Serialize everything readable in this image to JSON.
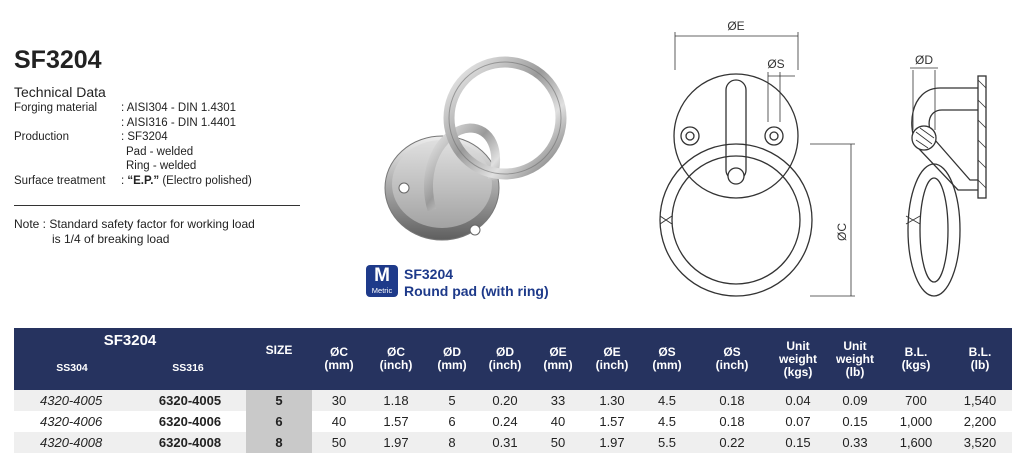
{
  "title": "SF3204",
  "technical_heading": "Technical Data",
  "specs": [
    {
      "label": "Forging material",
      "value": ": AISI304 - DIN 1.4301"
    },
    {
      "label": "",
      "value": ": AISI316 - DIN 1.4401"
    },
    {
      "label": "Production",
      "value": ": SF3204"
    },
    {
      "label": "",
      "value": "Pad - welded"
    },
    {
      "label": "",
      "value": "Ring - welded"
    },
    {
      "label": "Surface treatment",
      "value_prefix": ": ",
      "value_bold": "“E.P.”",
      "value_suffix": " (Electro polished)"
    }
  ],
  "note": {
    "line1": "Note : Standard safety factor for working load",
    "line2": "is 1/4 of breaking load"
  },
  "caption": {
    "badge_letter": "M",
    "badge_text": "Metric",
    "code": "SF3204",
    "name": "Round pad (with ring)"
  },
  "drawing_labels": {
    "dia_e": "ØE",
    "dia_s": "ØS",
    "dia_c": "ØC",
    "dia_d": "ØD"
  },
  "table": {
    "group_title": "SF3204",
    "sub_ss304": "SS304",
    "sub_ss316": "SS316",
    "headers": [
      {
        "l1": "SIZE",
        "l2": ""
      },
      {
        "l1": "ØC",
        "l2": "(mm)"
      },
      {
        "l1": "ØC",
        "l2": "(inch)"
      },
      {
        "l1": "ØD",
        "l2": "(mm)"
      },
      {
        "l1": "ØD",
        "l2": "(inch)"
      },
      {
        "l1": "ØE",
        "l2": "(mm)"
      },
      {
        "l1": "ØE",
        "l2": "(inch)"
      },
      {
        "l1": "ØS",
        "l2": "(mm)"
      },
      {
        "l1": "ØS",
        "l2": "(inch)"
      },
      {
        "l1": "Unit weight",
        "l2": "(kgs)"
      },
      {
        "l1": "Unit weight",
        "l2": "(lb)"
      },
      {
        "l1": "B.L.",
        "l2": "(kgs)"
      },
      {
        "l1": "B.L.",
        "l2": "(lb)"
      }
    ],
    "rows": [
      {
        "ss304": "4320-4005",
        "ss316": "6320-4005",
        "cells": [
          "5",
          "30",
          "1.18",
          "5",
          "0.20",
          "33",
          "1.30",
          "4.5",
          "0.18",
          "0.04",
          "0.09",
          "700",
          "1,540"
        ]
      },
      {
        "ss304": "4320-4006",
        "ss316": "6320-4006",
        "cells": [
          "6",
          "40",
          "1.57",
          "6",
          "0.24",
          "40",
          "1.57",
          "4.5",
          "0.18",
          "0.07",
          "0.15",
          "1,000",
          "2,200"
        ]
      },
      {
        "ss304": "4320-4008",
        "ss316": "6320-4008",
        "cells": [
          "8",
          "50",
          "1.97",
          "8",
          "0.31",
          "50",
          "1.97",
          "5.5",
          "0.22",
          "0.15",
          "0.33",
          "1,600",
          "3,520"
        ]
      }
    ]
  },
  "colors": {
    "header_bg": "#26335f",
    "caption_blue": "#1e3a8a",
    "size_cell_bg": "#c9c9c9",
    "stripe_bg": "#efefef"
  }
}
